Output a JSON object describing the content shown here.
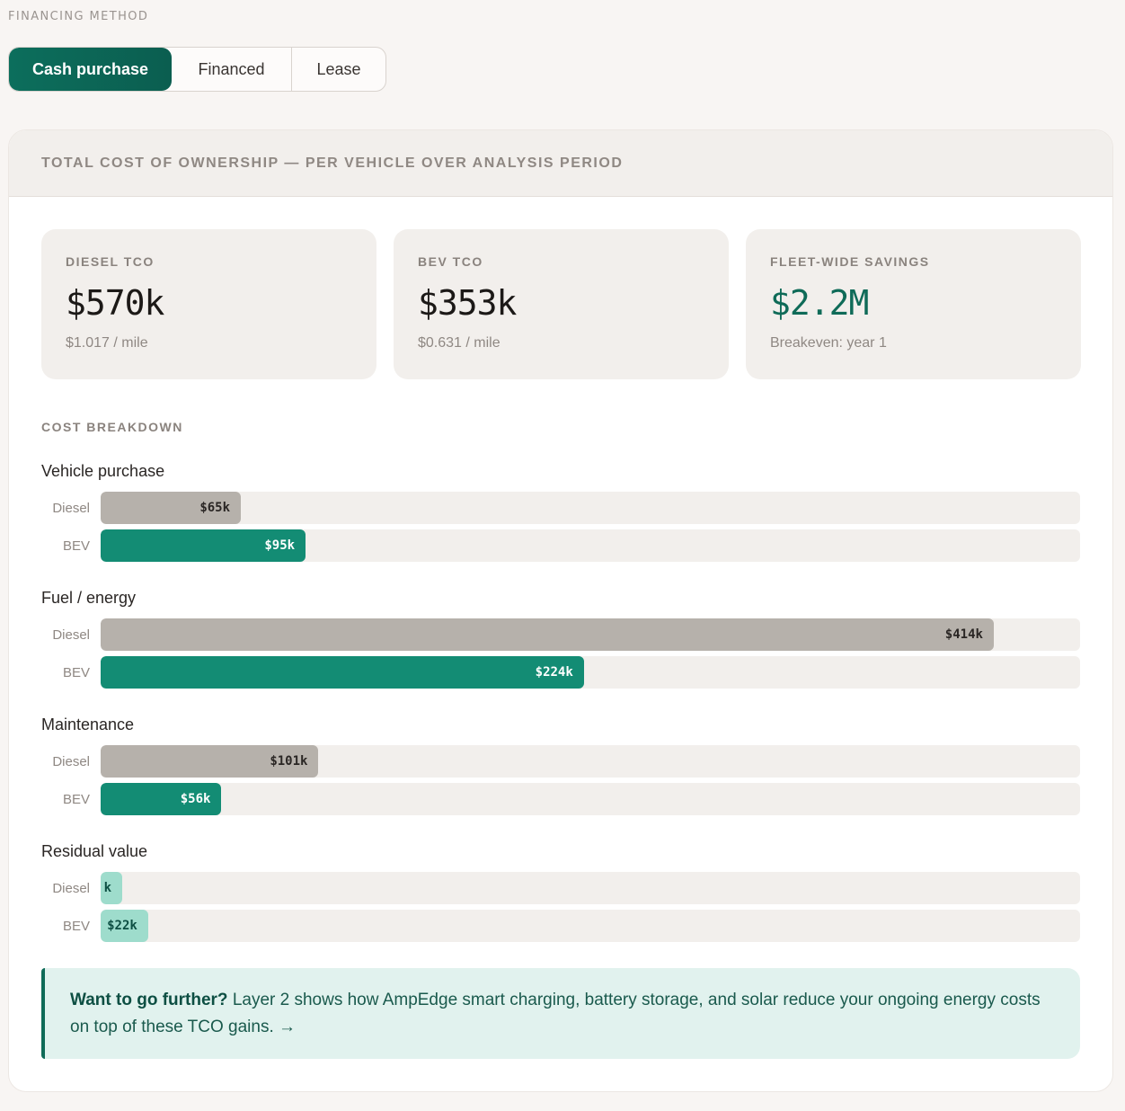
{
  "financing": {
    "label": "FINANCING METHOD",
    "options": [
      {
        "label": "Cash purchase",
        "active": true
      },
      {
        "label": "Financed",
        "active": false
      },
      {
        "label": "Lease",
        "active": false
      }
    ]
  },
  "tco": {
    "title": "TOTAL COST OF OWNERSHIP — PER VEHICLE OVER ANALYSIS PERIOD",
    "kpis": [
      {
        "label": "DIESEL TCO",
        "value": "$570k",
        "sub": "$1.017 / mile"
      },
      {
        "label": "BEV TCO",
        "value": "$353k",
        "sub": "$0.631 / mile"
      },
      {
        "label": "FLEET-WIDE SAVINGS",
        "value": "$2.2M",
        "sub": "Breakeven: year 1"
      }
    ],
    "breakdown_label": "COST BREAKDOWN",
    "max_value_k": 454,
    "groups": [
      {
        "title": "Vehicle purchase",
        "rows": [
          {
            "label": "Diesel",
            "value_k": 65,
            "text": "$65k",
            "kind": "diesel"
          },
          {
            "label": "BEV",
            "value_k": 95,
            "text": "$95k",
            "kind": "bev"
          }
        ]
      },
      {
        "title": "Fuel / energy",
        "rows": [
          {
            "label": "Diesel",
            "value_k": 414,
            "text": "$414k",
            "kind": "diesel"
          },
          {
            "label": "BEV",
            "value_k": 224,
            "text": "$224k",
            "kind": "bev"
          }
        ]
      },
      {
        "title": "Maintenance",
        "rows": [
          {
            "label": "Diesel",
            "value_k": 101,
            "text": "$101k",
            "kind": "diesel"
          },
          {
            "label": "BEV",
            "value_k": 56,
            "text": "$56k",
            "kind": "bev"
          }
        ]
      },
      {
        "title": "Residual value",
        "rows": [
          {
            "label": "Diesel",
            "value_k": 10,
            "text": "k",
            "kind": "residual"
          },
          {
            "label": "BEV",
            "value_k": 22,
            "text": "$22k",
            "kind": "residual"
          }
        ]
      }
    ]
  },
  "callout": {
    "lead": "Want to go further?",
    "text": " Layer 2 shows how AmpEdge smart charging, battery storage, and solar reduce your ongoing energy costs on top of these TCO gains. →"
  }
}
